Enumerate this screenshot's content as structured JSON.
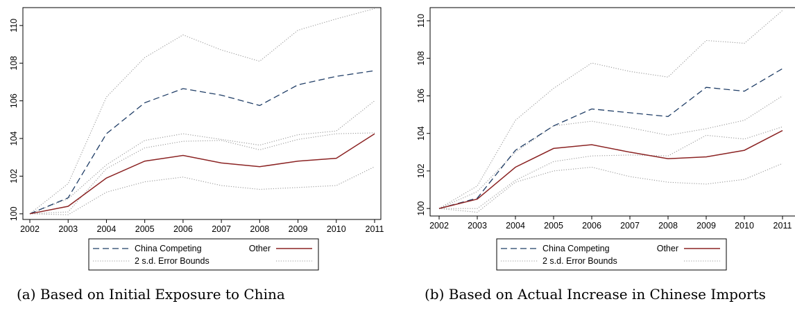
{
  "chart_data": [
    {
      "type": "line",
      "caption": "(a) Based on Initial Exposure to China",
      "x": [
        2002,
        2003,
        2004,
        2005,
        2006,
        2007,
        2008,
        2009,
        2010,
        2011
      ],
      "xticks": [
        "2002",
        "2003",
        "2004",
        "2005",
        "2006",
        "2007",
        "2008",
        "2009",
        "2010",
        "2011"
      ],
      "yticks": [
        "100",
        "102",
        "104",
        "106",
        "108",
        "110"
      ],
      "xlim": [
        2002,
        2011
      ],
      "ylim": [
        99.7,
        110.95
      ],
      "grid": false,
      "legend_position": "bottom",
      "series": [
        {
          "name": "China Competing",
          "style": "dashed",
          "color": "#1f3d66",
          "values": [
            100,
            100.85,
            104.25,
            105.9,
            106.65,
            106.3,
            105.75,
            106.85,
            107.3,
            107.6
          ]
        },
        {
          "name": "Other",
          "style": "solid",
          "color": "#8b2323",
          "values": [
            100,
            100.4,
            101.9,
            102.8,
            103.1,
            102.7,
            102.5,
            102.8,
            102.95,
            104.25
          ]
        },
        {
          "name": "2 s.d. Error Bounds",
          "style": "dotted",
          "color": "#999999",
          "values": [
            100,
            101.6,
            106.2,
            108.3,
            109.5,
            108.7,
            108.1,
            109.75,
            110.35,
            110.9
          ]
        },
        {
          "style": "dotted",
          "color": "#999999",
          "values": [
            100,
            100.1,
            102.4,
            103.5,
            103.85,
            103.9,
            103.4,
            103.95,
            104.25,
            104.3
          ]
        },
        {
          "style": "dotted",
          "color": "#999999",
          "values": [
            100,
            100.8,
            102.6,
            103.9,
            104.25,
            103.95,
            103.65,
            104.2,
            104.4,
            106.0
          ]
        },
        {
          "style": "dotted",
          "color": "#999999",
          "values": [
            100,
            99.95,
            101.15,
            101.7,
            101.95,
            101.5,
            101.3,
            101.4,
            101.5,
            102.5
          ]
        }
      ],
      "legend": [
        "China Competing",
        "Other",
        "2 s.d. Error Bounds",
        ""
      ]
    },
    {
      "type": "line",
      "caption": "(b) Based on Actual Increase in Chinese Imports",
      "x": [
        2002,
        2003,
        2004,
        2005,
        2006,
        2007,
        2008,
        2009,
        2010,
        2011
      ],
      "xticks": [
        "2002",
        "2003",
        "2004",
        "2005",
        "2006",
        "2007",
        "2008",
        "2009",
        "2010",
        "2011"
      ],
      "yticks": [
        "100",
        "102",
        "104",
        "106",
        "108",
        "110"
      ],
      "xlim": [
        2002,
        2011
      ],
      "ylim": [
        99.6,
        110.7
      ],
      "grid": false,
      "legend_position": "bottom",
      "series": [
        {
          "name": "China Competing",
          "style": "dashed",
          "color": "#1f3d66",
          "values": [
            100,
            100.55,
            103.1,
            104.4,
            105.3,
            105.1,
            104.9,
            106.45,
            106.25,
            107.45
          ]
        },
        {
          "name": "Other",
          "style": "solid",
          "color": "#8b2323",
          "values": [
            100,
            100.5,
            102.2,
            103.2,
            103.4,
            103.0,
            102.65,
            102.75,
            103.1,
            104.15
          ]
        },
        {
          "name": "2 s.d. Error Bounds",
          "style": "dotted",
          "color": "#999999",
          "values": [
            100,
            101.2,
            104.7,
            106.4,
            107.75,
            107.3,
            107.0,
            108.95,
            108.8,
            110.55
          ]
        },
        {
          "style": "dotted",
          "color": "#999999",
          "values": [
            100,
            100.0,
            101.5,
            102.5,
            102.8,
            102.85,
            102.8,
            103.9,
            103.7,
            104.35
          ]
        },
        {
          "style": "dotted",
          "color": "#999999",
          "values": [
            100,
            100.9,
            103.0,
            104.4,
            104.65,
            104.3,
            103.9,
            104.25,
            104.7,
            106.0
          ]
        },
        {
          "style": "dotted",
          "color": "#999999",
          "values": [
            100,
            99.8,
            101.4,
            102.0,
            102.2,
            101.7,
            101.4,
            101.3,
            101.55,
            102.4
          ]
        }
      ],
      "legend": [
        "China Competing",
        "Other",
        "2 s.d. Error Bounds",
        ""
      ]
    }
  ]
}
